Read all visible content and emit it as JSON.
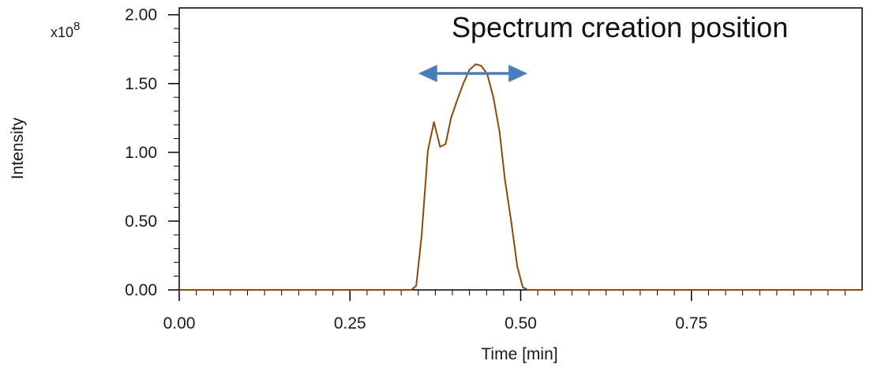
{
  "chart_data": {
    "type": "line",
    "title": "",
    "xlabel": "Time [min]",
    "ylabel": "Intensity",
    "y_multiplier_label": "x10",
    "y_multiplier_exponent": "8",
    "xlim": [
      0,
      1
    ],
    "ylim": [
      0,
      2.05
    ],
    "x_ticks": [
      0,
      0.25,
      0.5,
      0.75
    ],
    "x_tick_labels": [
      "0.00",
      "0.25",
      "0.50",
      "0.75"
    ],
    "x_minor_step": 0.025,
    "y_ticks": [
      0,
      0.5,
      1.0,
      1.5,
      2.0
    ],
    "y_tick_labels": [
      "0.00",
      "0.50",
      "1.00",
      "1.50",
      "2.00"
    ],
    "y_minor_step": 0.1,
    "grid": false,
    "series": [
      {
        "color": "#8B4A0A",
        "x": [
          0.0,
          0.34,
          0.347,
          0.355,
          0.364,
          0.373,
          0.382,
          0.39,
          0.398,
          0.407,
          0.416,
          0.425,
          0.434,
          0.442,
          0.451,
          0.46,
          0.469,
          0.477,
          0.486,
          0.495,
          0.503,
          0.51,
          1.0
        ],
        "y": [
          0.0,
          0.0,
          0.03,
          0.4,
          1.01,
          1.22,
          1.04,
          1.06,
          1.25,
          1.38,
          1.5,
          1.6,
          1.64,
          1.63,
          1.57,
          1.4,
          1.15,
          0.8,
          0.5,
          0.17,
          0.02,
          0.0,
          0.0
        ]
      }
    ],
    "annotations": [
      {
        "text": "Spectrum creation position",
        "arrow_from": 0.35,
        "arrow_to": 0.51,
        "arrow_y": 1.7,
        "arrow_color": "#4A7EBB"
      }
    ]
  }
}
